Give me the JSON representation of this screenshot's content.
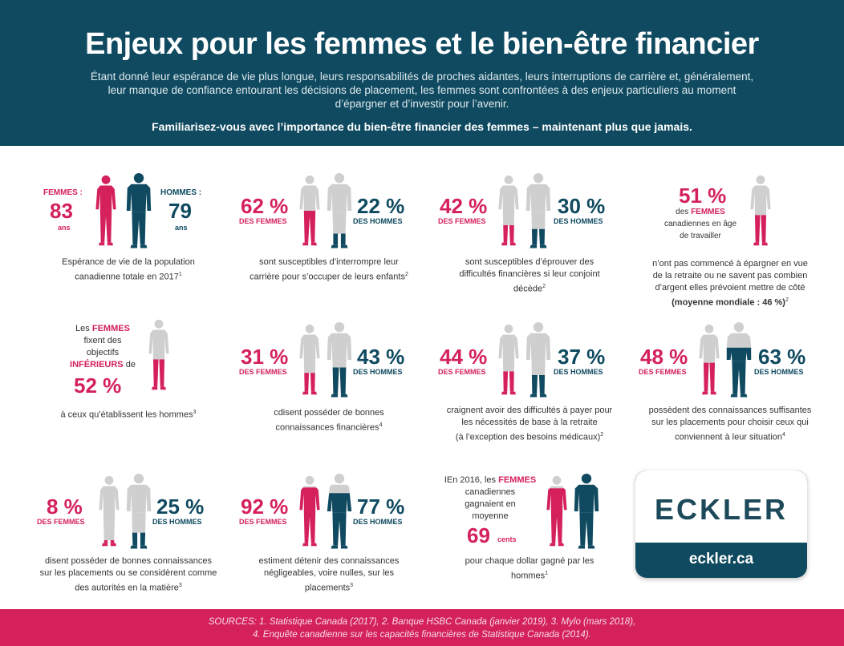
{
  "header": {
    "title": "Enjeux pour les femmes et le bien-être financier",
    "intro_line1": "Étant donné leur espérance de vie plus longue, leurs responsabilités de proches aidantes, leurs interruptions de carrière et, généralement,",
    "intro_line2": "leur manque de confiance entourant les décisions de placement, les femmes sont confrontées à des enjeux particuliers au moment",
    "intro_line3": "d’épargner et d’investir pour l’avenir.",
    "cta": "Familiarisez-vous avec l’importance du bien-être financier des femmes – maintenant plus que jamais."
  },
  "stats": {
    "life": {
      "women_label": "FEMMES :",
      "women_value": "83",
      "women_unit": "ans",
      "men_label": "HOMMES :",
      "men_value": "79",
      "men_unit": "ans",
      "caption1": "Espérance de vie de la population",
      "caption2": "canadienne totale en 2017",
      "ref": "1"
    },
    "career": {
      "women_pct": "62 %",
      "women_label": "DES FEMMES",
      "men_pct": "22 %",
      "men_label": "DES HOMMES",
      "caption1": "sont susceptibles d’interrompre leur",
      "caption2": "carrière pour s’occuper de leurs enfants",
      "ref": "2"
    },
    "spouse": {
      "women_pct": "42 %",
      "women_label": "DES FEMMES",
      "men_pct": "30 %",
      "men_label": "DES HOMMES",
      "caption1": "sont susceptibles d’éprouver des",
      "caption2": "difficultés financières si leur conjoint",
      "caption3": "décède",
      "ref": "2"
    },
    "saving": {
      "pct": "51 %",
      "line1": "des",
      "line1b": "FEMMES",
      "line2": "canadiennes en âge",
      "line3": "de travailler",
      "caption1": "n’ont pas commencé à épargner en vue",
      "caption2": "de la retraite ou ne savent pas combien",
      "caption3": "d’argent elles prévoient mettre de côté",
      "caption4": "(moyenne mondiale : 46 %)",
      "ref": "2"
    },
    "goals": {
      "line1a": "Les",
      "line1b": "FEMMES",
      "line2": "fixent des",
      "line3": "objectifs",
      "line4a": "INFÉRIEURS",
      "line4b": "de",
      "pct": "52 %",
      "caption1": "à ceux qu’établissent les hommes",
      "ref": "3"
    },
    "knowledge": {
      "women_pct": "31 %",
      "women_label": "DES FEMMES",
      "men_pct": "43 %",
      "men_label": "DES HOMMES",
      "caption1": "cdisent posséder de bonnes",
      "caption2": "connaissances financières",
      "ref": "4"
    },
    "retirement": {
      "women_pct": "44  %",
      "women_label": "DES FEMMES",
      "men_pct": "37 %",
      "men_label": "DES HOMMES",
      "caption1": "craignent avoir des difficultés à payer pour",
      "caption2": "les nécessités de base à la retraite",
      "caption3": "(à l’exception des besoins médicaux)",
      "ref": "2"
    },
    "investments": {
      "women_pct": "48 %",
      "women_label": "DES FEMMES",
      "men_pct": "63 %",
      "men_label": "DES HOMMES",
      "caption1": "possèdent des connaissances suffisantes",
      "caption2": "sur les placements pour choisir ceux qui",
      "caption3": "conviennent à leur situation",
      "ref": "4"
    },
    "experts": {
      "women_pct": "8 %",
      "women_label": "DES FEMMES",
      "men_pct": "25 %",
      "men_label": "DES HOMMES",
      "caption1": "disent posséder de bonnes connaissances",
      "caption2": "sur les placements ou se considèrent comme",
      "caption3": "des autorités en la matière",
      "ref": "3"
    },
    "negligible": {
      "women_pct": "92 %",
      "women_label": "DES FEMMES",
      "men_pct": "77 %",
      "men_label": "DES HOMMES",
      "caption1": "estiment détenir des connaissances",
      "caption2": "négligeables, voire nulles, sur les",
      "caption3": "placements",
      "ref": "3"
    },
    "pay": {
      "line1a": "IEn 2016, les",
      "line1b": "FEMMES",
      "line2": "canadiennes",
      "line3": "gagnaient en",
      "line4": "moyenne",
      "value": "69",
      "unit": "cents",
      "caption1": "pour chaque dollar gagné par les",
      "caption2": "hommes",
      "ref": "1"
    }
  },
  "logo": {
    "name": "ECKLER",
    "url": "eckler.ca"
  },
  "footer": {
    "line1": "SOURCES: 1. Statistique Canada (2017), 2. Banque HSBC Canada (janvier 2019), 3. Mylo (mars 2018),",
    "line2": "4. Enquête canadienne sur les capacités financières de Statistique Canada (2014)."
  },
  "colors": {
    "navy": "#0f4a60",
    "pink": "#d4215c",
    "grey": "#cfcfcf",
    "white": "#ffffff"
  }
}
